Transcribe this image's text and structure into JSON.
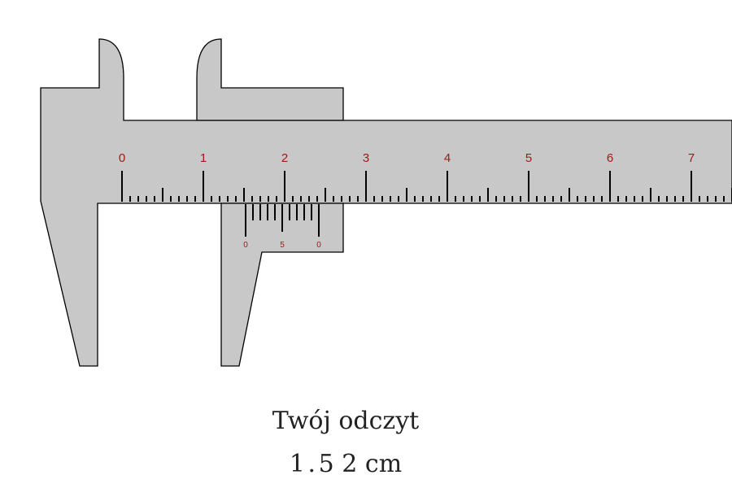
{
  "diagram": {
    "main_scale": {
      "labels": [
        "0",
        "1",
        "2",
        "3",
        "4",
        "5",
        "6",
        "7"
      ],
      "label_color": "#a01818"
    },
    "vernier_scale": {
      "labels": [
        "0",
        "5",
        "0"
      ],
      "label_color": "#a01818",
      "reading": 0.02
    },
    "jaw_position_cm": 1.52,
    "body_color": "#c8c8c8",
    "outline_color": "#000000"
  },
  "readout": {
    "label": "Twój odczyt",
    "digit_ones": "1",
    "separator": ".",
    "digit_tenths": "5",
    "digit_hundredths": "2",
    "unit": "cm"
  }
}
